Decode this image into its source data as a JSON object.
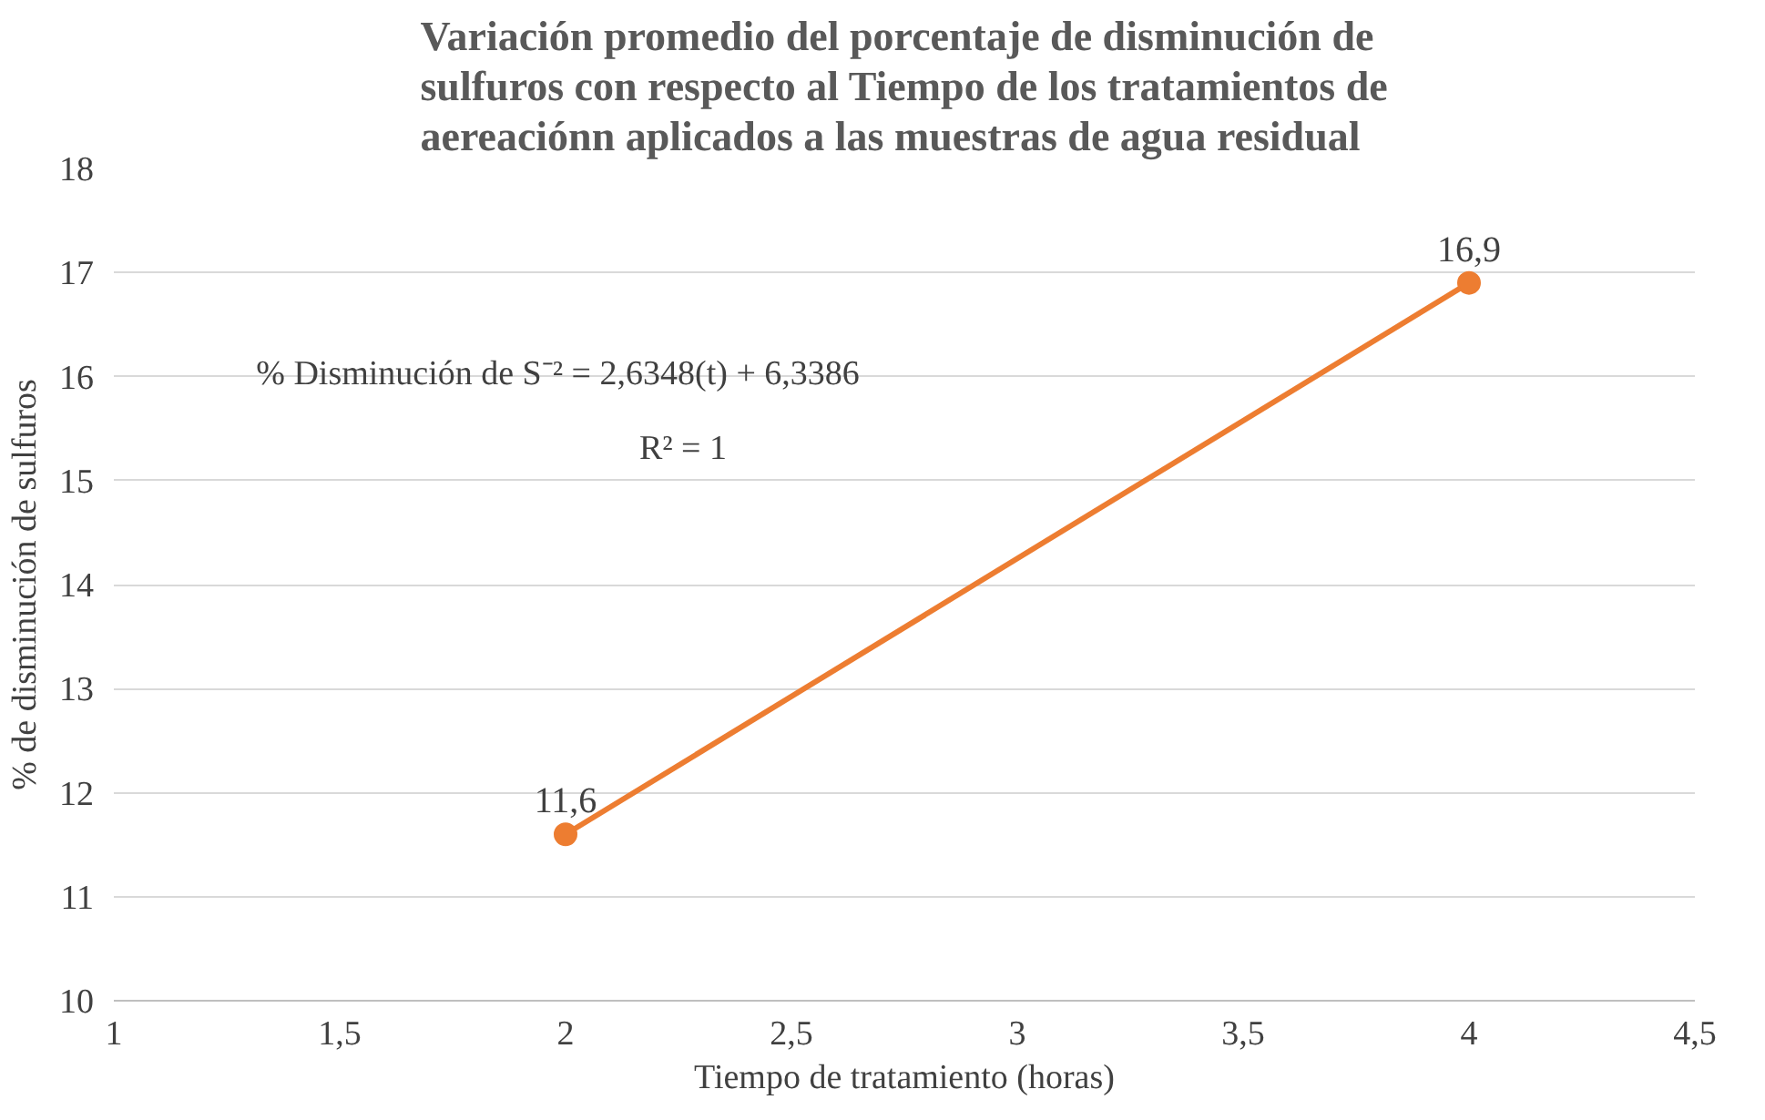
{
  "chart_data": {
    "type": "line",
    "title": "Variación promedio del porcentaje de disminución de sulfuros con respecto al Tiempo de los tratamientos de aereaciónn aplicados a las muestras de agua residual",
    "xlabel": "Tiempo de tratamiento (horas)",
    "ylabel": "% de disminución de sulfuros",
    "x": [
      2,
      4
    ],
    "series": [
      {
        "color": "#ed7d31",
        "values": [
          11.6,
          16.9
        ],
        "value_labels": [
          "11,6",
          "16,9"
        ]
      }
    ],
    "xlim": [
      1,
      4.5
    ],
    "xticks": [
      1,
      {
        "value": 1.5,
        "label": "1,5"
      },
      2,
      {
        "value": 2.5,
        "label": "2,5"
      },
      3,
      {
        "value": 3.5,
        "label": "3,5"
      },
      4,
      {
        "value": 4.5,
        "label": "4,5"
      }
    ],
    "ylim": [
      10,
      18
    ],
    "yticks": [
      10,
      11,
      12,
      13,
      14,
      15,
      16,
      17,
      18
    ],
    "grid": "y",
    "marker": "circle",
    "line_style": "solid",
    "annotations": [
      "% Disminución de S⁻² = 2,6348(t) + 6,3386",
      "R² = 1"
    ]
  }
}
